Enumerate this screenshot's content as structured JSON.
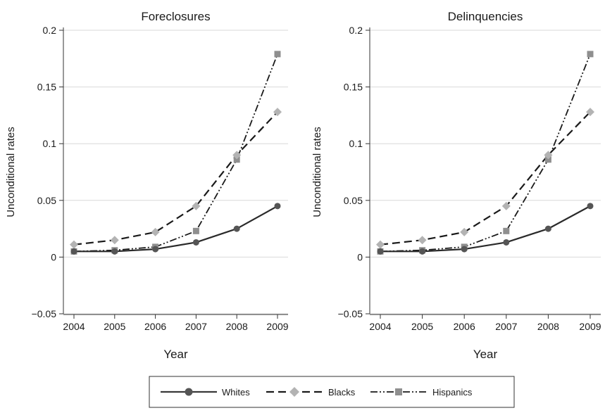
{
  "legend": {
    "entries": [
      {
        "label": "Whites"
      },
      {
        "label": "Blacks"
      },
      {
        "label": "Hispanics"
      }
    ]
  },
  "chart_data": [
    {
      "type": "line",
      "title": "Foreclosures",
      "xlabel": "Year",
      "ylabel": "Unconditional rates",
      "x": [
        2004,
        2005,
        2006,
        2007,
        2008,
        2009
      ],
      "ylim": [
        -0.05,
        0.2
      ],
      "yticks": [
        -0.05,
        0,
        0.05,
        0.1,
        0.15,
        0.2
      ],
      "ytick_labels": [
        "−0.05",
        "0",
        "0.05",
        "0.1",
        "0.15",
        "0.2"
      ],
      "xtick_labels": [
        "2004",
        "2005",
        "2006",
        "2007",
        "2008",
        "2009"
      ],
      "grid": true,
      "series": [
        {
          "name": "Whites",
          "values": [
            0.005,
            0.005,
            0.007,
            0.013,
            0.025,
            0.045
          ],
          "color": "#3a3a3a",
          "marker": "circle",
          "dash": "solid"
        },
        {
          "name": "Blacks",
          "values": [
            0.011,
            0.015,
            0.022,
            0.045,
            0.09,
            0.128
          ],
          "color": "#b3b3b3",
          "marker": "diamond",
          "dash": "dashed"
        },
        {
          "name": "Hispanics",
          "values": [
            0.005,
            0.006,
            0.009,
            0.023,
            0.086,
            0.179
          ],
          "color": "#8f8f8f",
          "marker": "square",
          "dash": "dashdotdot"
        }
      ]
    },
    {
      "type": "line",
      "title": "Delinquencies",
      "xlabel": "Year",
      "ylabel": "Unconditional rates",
      "x": [
        2004,
        2005,
        2006,
        2007,
        2008,
        2009
      ],
      "ylim": [
        -0.05,
        0.2
      ],
      "yticks": [
        -0.05,
        0,
        0.05,
        0.1,
        0.15,
        0.2
      ],
      "ytick_labels": [
        "−0.05",
        "0",
        "0.05",
        "0.1",
        "0.15",
        "0.2"
      ],
      "xtick_labels": [
        "2004",
        "2005",
        "2006",
        "2007",
        "2008",
        "2009"
      ],
      "grid": true,
      "series": [
        {
          "name": "Whites",
          "values": [
            0.005,
            0.005,
            0.007,
            0.013,
            0.025,
            0.045
          ],
          "color": "#3a3a3a",
          "marker": "circle",
          "dash": "solid"
        },
        {
          "name": "Blacks",
          "values": [
            0.011,
            0.015,
            0.022,
            0.045,
            0.09,
            0.128
          ],
          "color": "#b3b3b3",
          "marker": "diamond",
          "dash": "dashed"
        },
        {
          "name": "Hispanics",
          "values": [
            0.005,
            0.006,
            0.009,
            0.023,
            0.086,
            0.179
          ],
          "color": "#8f8f8f",
          "marker": "square",
          "dash": "dashdotdot"
        }
      ]
    }
  ]
}
